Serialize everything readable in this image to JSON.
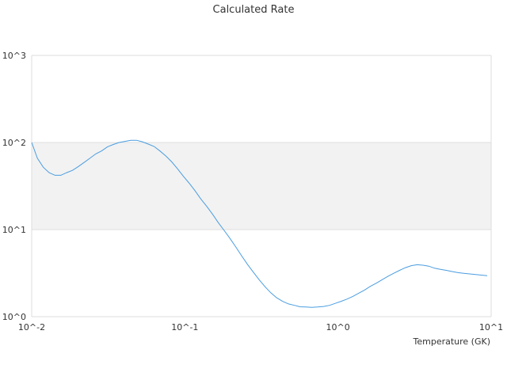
{
  "chart_data": {
    "type": "line",
    "title": "Calculated Rate",
    "xlabel": "Temperature (GK)",
    "ylabel": "",
    "xscale": "log",
    "yscale": "log",
    "xlim": [
      0.01,
      10
    ],
    "ylim": [
      1,
      1000
    ],
    "x_ticks": [
      {
        "value": 0.01,
        "label": "10^-2"
      },
      {
        "value": 0.1,
        "label": "10^-1"
      },
      {
        "value": 1,
        "label": "10^0"
      },
      {
        "value": 10,
        "label": "10^1"
      }
    ],
    "y_ticks": [
      {
        "value": 1,
        "label": "10^0"
      },
      {
        "value": 10,
        "label": "10^1"
      },
      {
        "value": 100,
        "label": "10^2"
      },
      {
        "value": 1000,
        "label": "10^3"
      }
    ],
    "band_colors": [
      "#ffffff",
      "#f2f2f2",
      "#ffffff"
    ],
    "line_color": "#4a9de0",
    "legend": "none",
    "series": [
      {
        "x": [
          0.01,
          0.0109,
          0.0119,
          0.013,
          0.0142,
          0.0155,
          0.0169,
          0.0185,
          0.0202,
          0.022,
          0.024,
          0.0262,
          0.0286,
          0.0312,
          0.0341,
          0.0372,
          0.0406,
          0.0443,
          0.0484,
          0.0528,
          0.0577,
          0.063,
          0.0688,
          0.0751,
          0.082,
          0.0895,
          0.0977,
          0.1068,
          0.1164,
          0.1271,
          0.1389,
          0.1517,
          0.1654,
          0.1805,
          0.1974,
          0.2156,
          0.2347,
          0.2562,
          0.2797,
          0.3058,
          0.3343,
          0.3641,
          0.3973,
          0.4339,
          0.4751,
          0.5194,
          0.5651,
          0.617,
          0.6737,
          0.7356,
          0.8054,
          0.8806,
          0.9599,
          1.048,
          1.144,
          1.25,
          1.364,
          1.489,
          1.626,
          1.775,
          1.938,
          2.116,
          2.311,
          2.523,
          2.755,
          3.008,
          3.284,
          3.585,
          3.914,
          4.274,
          4.666,
          5.095,
          5.563,
          6.073,
          6.631,
          7.24,
          7.904,
          8.63,
          9.423
        ],
        "y": [
          100,
          66,
          52,
          45,
          42,
          42,
          45,
          48,
          53,
          59,
          66,
          74,
          80,
          89,
          95,
          100,
          103,
          106,
          106,
          102,
          96,
          90,
          80,
          70,
          60,
          50,
          41,
          34,
          28,
          22.5,
          18.5,
          15,
          12,
          9.8,
          7.9,
          6.3,
          5.0,
          4.0,
          3.25,
          2.65,
          2.2,
          1.88,
          1.65,
          1.5,
          1.4,
          1.35,
          1.3,
          1.29,
          1.28,
          1.29,
          1.31,
          1.35,
          1.42,
          1.5,
          1.59,
          1.71,
          1.86,
          2.02,
          2.23,
          2.42,
          2.65,
          2.9,
          3.15,
          3.4,
          3.65,
          3.85,
          3.95,
          3.9,
          3.8,
          3.6,
          3.5,
          3.4,
          3.3,
          3.2,
          3.15,
          3.1,
          3.05,
          3.0,
          2.95
        ]
      }
    ]
  }
}
